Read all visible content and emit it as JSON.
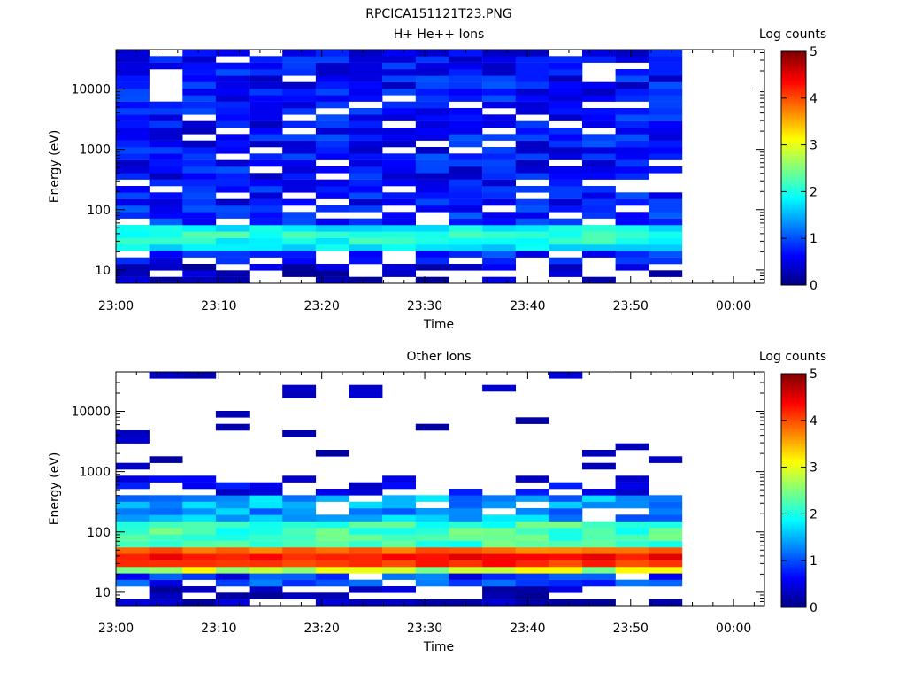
{
  "figure_title": "RPCICA151121T23.PNG",
  "colorbar_scale": {
    "min": 0,
    "max": 5,
    "ticks": [
      "0",
      "1",
      "2",
      "3",
      "4",
      "5"
    ]
  },
  "chart_data": [
    {
      "type": "heatmap",
      "title": "H+ He++ Ions",
      "xlabel": "Time",
      "ylabel": "Energy (eV)",
      "colorbar_label": "Log counts",
      "x_ticks": [
        "23:00",
        "23:10",
        "23:20",
        "23:30",
        "23:40",
        "23:50",
        "00:00"
      ],
      "x_range": [
        "23:00",
        "00:03"
      ],
      "y_scale": "log",
      "y_range": [
        6,
        45000
      ],
      "y_ticks": [
        "10",
        "100",
        "1000",
        "10000"
      ],
      "data_time_range": [
        "23:00",
        "23:55"
      ],
      "time_bins": 17,
      "energy_bins": 36,
      "profile": "ions_main"
    },
    {
      "type": "heatmap",
      "title": "Other Ions",
      "xlabel": "Time",
      "ylabel": "Energy (eV)",
      "colorbar_label": "Log counts",
      "x_ticks": [
        "23:00",
        "23:10",
        "23:20",
        "23:30",
        "23:40",
        "23:50",
        "00:00"
      ],
      "x_range": [
        "23:00",
        "00:03"
      ],
      "y_scale": "log",
      "y_range": [
        6,
        45000
      ],
      "y_ticks": [
        "10",
        "100",
        "1000",
        "10000"
      ],
      "data_time_range": [
        "23:00",
        "23:55"
      ],
      "time_bins": 17,
      "energy_bins": 36,
      "profile": "ions_other"
    }
  ]
}
